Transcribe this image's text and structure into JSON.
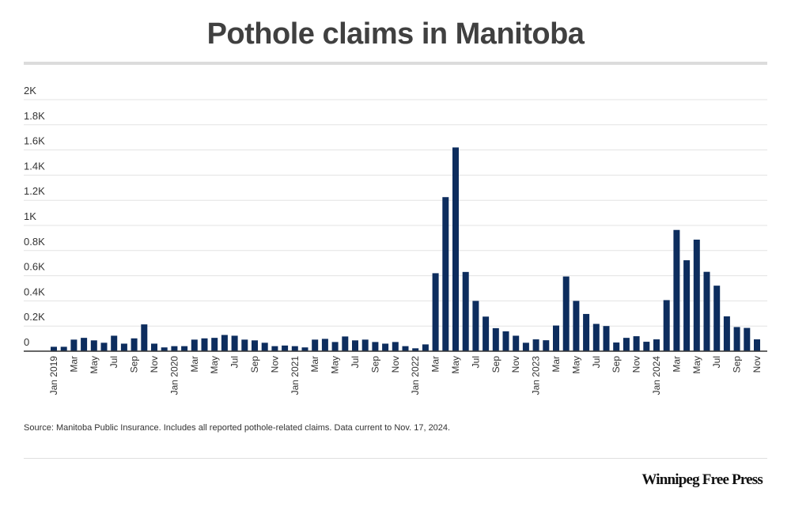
{
  "chart_data": {
    "type": "bar",
    "title": "Pothole claims in Manitoba",
    "xlabel": "",
    "ylabel": "",
    "ylim": [
      0,
      2000
    ],
    "yticks": [
      0,
      200,
      400,
      600,
      800,
      1000,
      1200,
      1400,
      1600,
      1800,
      2000
    ],
    "ytick_labels": [
      "0",
      "0.2K",
      "0.4K",
      "0.6K",
      "0.8K",
      "1K",
      "1.2K",
      "1.4K",
      "1.6K",
      "1.8K",
      "2K"
    ],
    "grid": true,
    "color": "#0d2d5e",
    "categories": [
      "Jan 2019",
      "Feb 2019",
      "Mar 2019",
      "Apr 2019",
      "May 2019",
      "Jun 2019",
      "Jul 2019",
      "Aug 2019",
      "Sep 2019",
      "Oct 2019",
      "Nov 2019",
      "Dec 2019",
      "Jan 2020",
      "Feb 2020",
      "Mar 2020",
      "Apr 2020",
      "May 2020",
      "Jun 2020",
      "Jul 2020",
      "Aug 2020",
      "Sep 2020",
      "Oct 2020",
      "Nov 2020",
      "Dec 2020",
      "Jan 2021",
      "Feb 2021",
      "Mar 2021",
      "Apr 2021",
      "May 2021",
      "Jun 2021",
      "Jul 2021",
      "Aug 2021",
      "Sep 2021",
      "Oct 2021",
      "Nov 2021",
      "Dec 2021",
      "Jan 2022",
      "Feb 2022",
      "Mar 2022",
      "Apr 2022",
      "May 2022",
      "Jun 2022",
      "Jul 2022",
      "Aug 2022",
      "Sep 2022",
      "Oct 2022",
      "Nov 2022",
      "Dec 2022",
      "Jan 2023",
      "Feb 2023",
      "Mar 2023",
      "Apr 2023",
      "May 2023",
      "Jun 2023",
      "Jul 2023",
      "Aug 2023",
      "Sep 2023",
      "Oct 2023",
      "Nov 2023",
      "Dec 2023",
      "Jan 2024",
      "Feb 2024",
      "Mar 2024",
      "Apr 2024",
      "May 2024",
      "Jun 2024",
      "Jul 2024",
      "Aug 2024",
      "Sep 2024",
      "Oct 2024",
      "Nov 2024"
    ],
    "values": [
      35,
      35,
      92,
      106,
      86,
      67,
      123,
      60,
      102,
      213,
      60,
      30,
      40,
      40,
      92,
      102,
      106,
      129,
      123,
      92,
      86,
      67,
      40,
      45,
      40,
      30,
      92,
      98,
      73,
      117,
      86,
      92,
      73,
      60,
      73,
      40,
      23,
      54,
      620,
      1225,
      1620,
      630,
      400,
      275,
      183,
      158,
      123,
      67,
      94,
      87,
      204,
      594,
      400,
      296,
      217,
      200,
      69,
      106,
      119,
      75,
      94,
      406,
      964,
      723,
      887,
      631,
      521,
      277,
      192,
      185,
      94
    ],
    "xtick_labels": [
      "Jan 2019",
      "",
      "Mar",
      "",
      "May",
      "",
      "Jul",
      "",
      "Sep",
      "",
      "Nov",
      "",
      "Jan 2020",
      "",
      "Mar",
      "",
      "May",
      "",
      "Jul",
      "",
      "Sep",
      "",
      "Nov",
      "",
      "Jan 2021",
      "",
      "Mar",
      "",
      "May",
      "",
      "Jul",
      "",
      "Sep",
      "",
      "Nov",
      "",
      "Jan 2022",
      "",
      "Mar",
      "",
      "May",
      "",
      "Jul",
      "",
      "Sep",
      "",
      "Nov",
      "",
      "Jan 2023",
      "",
      "Mar",
      "",
      "May",
      "",
      "Jul",
      "",
      "Sep",
      "",
      "Nov",
      "",
      "Jan 2024",
      "",
      "Mar",
      "",
      "May",
      "",
      "Jul",
      "",
      "Sep",
      "",
      "Nov"
    ]
  },
  "source": "Source: Manitoba Public Insurance. Includes all reported pothole-related claims. Data current to Nov. 17, 2024.",
  "logo": "Winnipeg Free Press"
}
